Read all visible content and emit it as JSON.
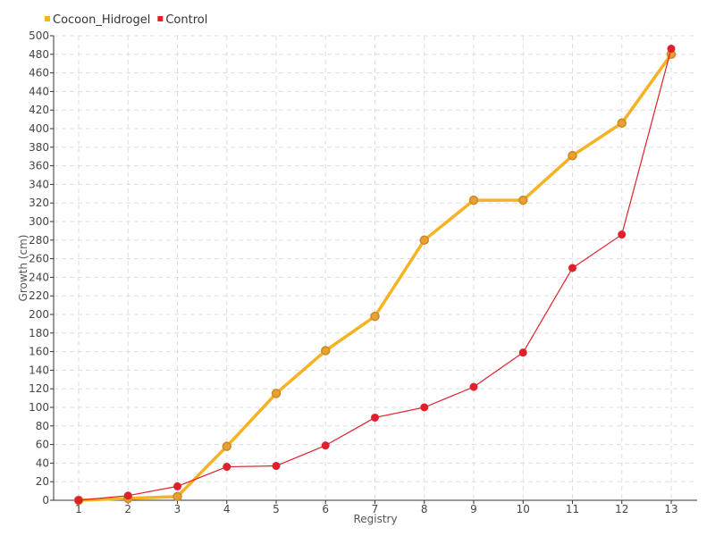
{
  "chart_data": {
    "type": "line",
    "xlabel": "Registry",
    "ylabel": "Growth (cm)",
    "categories": [
      "1",
      "2",
      "3",
      "4",
      "5",
      "6",
      "7",
      "8",
      "9",
      "10",
      "11",
      "12",
      "13"
    ],
    "ylim": [
      0,
      500
    ],
    "ytick_step": 20,
    "grid": true,
    "legend_position": "top-left",
    "series": [
      {
        "name": "Cocoon_Hidrogel",
        "color": "#F5B324",
        "marker_color": "#E8A030",
        "marker_edge": "#C98A2A",
        "values": [
          0,
          2,
          4,
          58,
          115,
          161,
          198,
          280,
          323,
          323,
          371,
          406,
          480
        ]
      },
      {
        "name": "Control",
        "color": "#E0202A",
        "marker_color": "#E0202A",
        "marker_edge": "#E0202A",
        "values": [
          0,
          5,
          15,
          36,
          37,
          59,
          89,
          100,
          122,
          159,
          250,
          286,
          486
        ]
      }
    ]
  }
}
